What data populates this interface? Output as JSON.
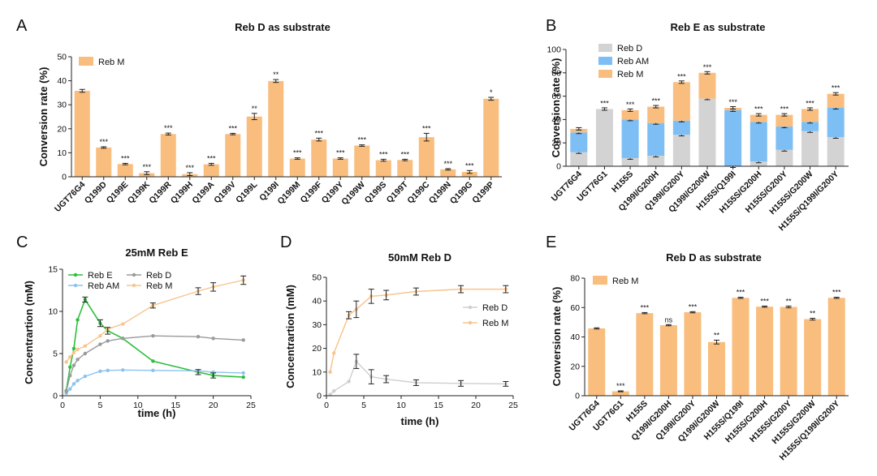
{
  "colors": {
    "orange": "#F9BD7D",
    "blue": "#7DBEF4",
    "gray": "#D3D3D3",
    "green": "#2DBF3C",
    "lineGray": "#9A9A9A",
    "lightBlue": "#8CC3EE",
    "lightOrange": "#F7C58D",
    "paleGray": "#CFCFCF"
  },
  "chart_data": [
    {
      "panel": "A",
      "type": "bar",
      "title": "Reb D as substrate",
      "ylabel": "Conversion rate (%)",
      "ylim": [
        0,
        50
      ],
      "yticks": [
        0,
        10,
        20,
        30,
        40,
        50
      ],
      "legend": [
        "Reb M"
      ],
      "categories": [
        "UGT76G4",
        "Q199D",
        "Q199E",
        "Q199K",
        "Q199R",
        "Q199H",
        "Q199A",
        "Q199V",
        "Q199L",
        "Q199I",
        "Q199M",
        "Q199F",
        "Q199Y",
        "Q199W",
        "Q199S",
        "Q199T",
        "Q199C",
        "Q199N",
        "Q199G",
        "Q199P"
      ],
      "values": [
        35.8,
        12.2,
        5.3,
        1.5,
        17.8,
        1.1,
        5.2,
        17.8,
        25.1,
        39.9,
        7.6,
        15.5,
        7.6,
        13.0,
        6.9,
        7.0,
        16.5,
        3.1,
        2.0,
        32.5
      ],
      "errors": [
        0.6,
        0.3,
        0.3,
        0.6,
        0.4,
        0.6,
        0.4,
        0.3,
        1.3,
        0.6,
        0.3,
        0.6,
        0.3,
        0.3,
        0.4,
        0.3,
        1.6,
        0.3,
        0.6,
        0.6
      ],
      "significance": [
        "",
        "***",
        "***",
        "***",
        "***",
        "***",
        "***",
        "***",
        "**",
        "**",
        "***",
        "***",
        "***",
        "***",
        "***",
        "***",
        "***",
        "***",
        "***",
        "*"
      ]
    },
    {
      "panel": "B",
      "type": "bar",
      "stacked": true,
      "title": "Reb E as substrate",
      "ylabel": "Conversion rate (%)",
      "ylim": [
        0,
        100
      ],
      "yticks": [
        0,
        20,
        40,
        60,
        80,
        100
      ],
      "categories": [
        "UGT76G4",
        "UGT76G1",
        "H155S",
        "Q199I/G200H",
        "Q199I/G200Y",
        "Q199I/G200W",
        "H155S/Q199I",
        "H155S/G200H",
        "H155S/G200Y",
        "H155S/G200W",
        "H155S/Q199I/G200Y"
      ],
      "series": [
        {
          "name": "Reb D",
          "values": [
            12,
            49,
            7,
            9,
            27,
            58,
            0,
            4,
            14,
            30,
            25
          ]
        },
        {
          "name": "Reb AM",
          "values": [
            17,
            0,
            33,
            28,
            12,
            0,
            48,
            34,
            20,
            8,
            25
          ]
        },
        {
          "name": "Reb M",
          "values": [
            3,
            0,
            8,
            14,
            33,
            22,
            2,
            6,
            10,
            11,
            12
          ]
        }
      ],
      "significance": [
        "",
        "***",
        "***",
        "***",
        "***",
        "***",
        "***",
        "***",
        "***",
        "***",
        "***"
      ]
    },
    {
      "panel": "C",
      "type": "line",
      "title": "25mM Reb E",
      "xlabel": "time (h)",
      "ylabel": "Concentrartion (mM)",
      "xlim": [
        0,
        25
      ],
      "ylim": [
        0,
        15
      ],
      "xticks": [
        0,
        5,
        10,
        15,
        20,
        25
      ],
      "yticks": [
        0,
        5,
        10,
        15
      ],
      "series": [
        {
          "name": "Reb E",
          "x": [
            0.5,
            1,
            1.5,
            2,
            3,
            5,
            6,
            8,
            12,
            18,
            20,
            24
          ],
          "values": [
            0.6,
            3.4,
            5.6,
            9.0,
            11.4,
            8.6,
            7.7,
            6.8,
            4.1,
            2.8,
            2.4,
            2.2
          ]
        },
        {
          "name": "Reb AM",
          "x": [
            0.5,
            1,
            1.5,
            2,
            3,
            5,
            6,
            8,
            12,
            18,
            20,
            24
          ],
          "values": [
            0.3,
            0.8,
            1.4,
            1.8,
            2.3,
            2.9,
            3.0,
            3.05,
            3.0,
            2.95,
            2.8,
            2.7
          ]
        },
        {
          "name": "Reb D",
          "x": [
            0.5,
            1,
            1.5,
            2,
            3,
            5,
            6,
            8,
            12,
            18,
            20,
            24
          ],
          "values": [
            0.5,
            2.4,
            3.6,
            4.3,
            5.0,
            6.1,
            6.5,
            6.8,
            7.1,
            7.0,
            6.8,
            6.6
          ]
        },
        {
          "name": "Reb M",
          "x": [
            0.5,
            1,
            1.5,
            2,
            3,
            5,
            6,
            8,
            12,
            18,
            20,
            24
          ],
          "values": [
            4.0,
            4.6,
            5.1,
            5.5,
            5.9,
            7.1,
            7.9,
            8.5,
            10.7,
            12.4,
            12.9,
            13.7
          ]
        }
      ]
    },
    {
      "panel": "D",
      "type": "line",
      "title": "50mM Reb D",
      "xlabel": "time (h)",
      "ylabel": "Concentrartion (mM)",
      "xlim": [
        0,
        25
      ],
      "ylim": [
        0,
        50
      ],
      "xticks": [
        0,
        5,
        10,
        15,
        20,
        25
      ],
      "yticks": [
        0,
        10,
        20,
        30,
        40,
        50
      ],
      "series": [
        {
          "name": "Reb D",
          "x": [
            0.5,
            1,
            3,
            4,
            6,
            8,
            12,
            18,
            24
          ],
          "values": [
            0.5,
            2.0,
            6.0,
            14.5,
            8.0,
            7.0,
            5.5,
            5.2,
            5.0
          ]
        },
        {
          "name": "Reb M",
          "x": [
            0.5,
            1,
            3,
            4,
            6,
            8,
            12,
            18,
            24
          ],
          "values": [
            10.0,
            18.0,
            34.0,
            36.5,
            42.0,
            42.5,
            44.0,
            45.0,
            45.0
          ]
        }
      ]
    },
    {
      "panel": "E",
      "type": "bar",
      "title": "Reb D as substrate",
      "ylabel": "Conversion rate (%)",
      "ylim": [
        0,
        80
      ],
      "yticks": [
        0,
        20,
        40,
        60,
        80
      ],
      "legend": [
        "Reb M"
      ],
      "categories": [
        "UGT76G4",
        "UGT76G1",
        "H155S",
        "Q199I/G200H",
        "Q199I/G200Y",
        "Q199I/G200W",
        "H155S/Q199I",
        "H155S/G200H",
        "H155S/G200Y",
        "H155S/G200W",
        "H155S/Q199I/G200Y"
      ],
      "values": [
        45.8,
        3.0,
        56.2,
        48.0,
        56.8,
        36.5,
        66.6,
        60.6,
        60.4,
        52.1,
        66.6
      ],
      "errors": [
        0.4,
        0.3,
        0.4,
        0.4,
        0.4,
        1.3,
        0.4,
        0.4,
        0.6,
        0.6,
        0.4
      ],
      "significance": [
        "",
        "***",
        "***",
        "ns",
        "***",
        "**",
        "***",
        "***",
        "**",
        "**",
        "***"
      ]
    }
  ]
}
